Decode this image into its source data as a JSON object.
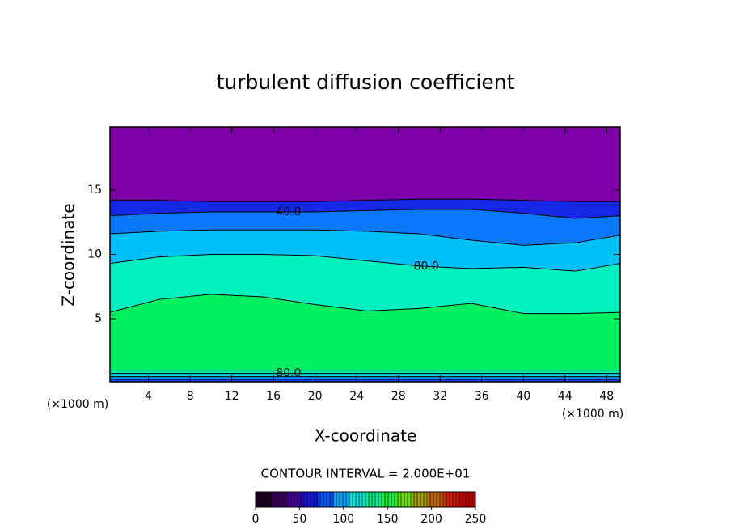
{
  "chart_data": {
    "type": "contour",
    "title": "turbulent diffusion coefficient",
    "x_label": "X-coordinate",
    "y_label": "Z-coordinate",
    "x_unit_label": "(×1000 m)",
    "y_unit_label": "(×1000 m)",
    "xlim": [
      0.3,
      49.3
    ],
    "ylim": [
      0.1,
      19.9
    ],
    "xticks": [
      4,
      8,
      12,
      16,
      20,
      24,
      28,
      32,
      36,
      40,
      44,
      48
    ],
    "yticks": [
      5,
      10,
      15
    ],
    "background_color": "#7e00a8",
    "x": [
      0.3,
      5,
      10,
      15,
      20,
      25,
      30,
      35,
      40,
      45,
      49.3
    ],
    "contours": [
      {
        "level": 20,
        "fill_below": "#1428e6",
        "y": [
          14.2,
          14.2,
          14.1,
          14.1,
          14.1,
          14.2,
          14.3,
          14.3,
          14.2,
          14.1,
          14.1
        ]
      },
      {
        "level": 40,
        "label": "40.0",
        "fill_below": "#0a78fa",
        "y": [
          13.0,
          13.2,
          13.3,
          13.3,
          13.3,
          13.4,
          13.5,
          13.5,
          13.2,
          12.8,
          13.0
        ]
      },
      {
        "level": 60,
        "fill_below": "#00c0fa",
        "y": [
          11.6,
          11.8,
          11.9,
          11.9,
          11.9,
          11.8,
          11.6,
          11.1,
          10.7,
          10.9,
          11.5
        ]
      },
      {
        "level": 80,
        "label": "80.0",
        "fill_below": "#00f0c0",
        "y": [
          9.3,
          9.8,
          10.0,
          10.0,
          9.9,
          9.5,
          9.1,
          8.9,
          9.0,
          8.7,
          9.3
        ]
      },
      {
        "level": 100,
        "fill_below": "#00f060",
        "y": [
          5.5,
          6.5,
          6.9,
          6.7,
          6.1,
          5.6,
          5.8,
          6.2,
          5.4,
          5.4,
          5.5
        ]
      },
      {
        "level": 100,
        "fill_below": "#00f0a0",
        "y": [
          1.0,
          1.0,
          1.0,
          1.0,
          1.0,
          1.0,
          1.0,
          1.0,
          1.0,
          1.0,
          1.0
        ]
      },
      {
        "level": 80,
        "label": "80.0",
        "fill_below": "#00d8e0",
        "y": [
          0.75,
          0.75,
          0.75,
          0.75,
          0.75,
          0.75,
          0.75,
          0.75,
          0.75,
          0.75,
          0.75
        ]
      },
      {
        "level": 60,
        "fill_below": "#0090ff",
        "y": [
          0.5,
          0.5,
          0.5,
          0.5,
          0.5,
          0.5,
          0.5,
          0.5,
          0.5,
          0.5,
          0.5
        ]
      },
      {
        "level": 40,
        "fill_below": "#1040e8",
        "y": [
          0.3,
          0.3,
          0.3,
          0.3,
          0.3,
          0.3,
          0.3,
          0.3,
          0.3,
          0.3,
          0.3
        ]
      }
    ],
    "contour_interval_label": "CONTOUR INTERVAL = 2.000E+01",
    "colorbar": {
      "lim": [
        0,
        250
      ],
      "ticks": [
        0,
        50,
        100,
        150,
        200,
        250
      ],
      "colors": [
        "#1a0022",
        "#3a0058",
        "#40009a",
        "#1818d8",
        "#0058f8",
        "#00a8f8",
        "#00e8e0",
        "#00f090",
        "#20f040",
        "#70e000",
        "#a8a000",
        "#c06000",
        "#d02000",
        "#c00000"
      ]
    }
  }
}
